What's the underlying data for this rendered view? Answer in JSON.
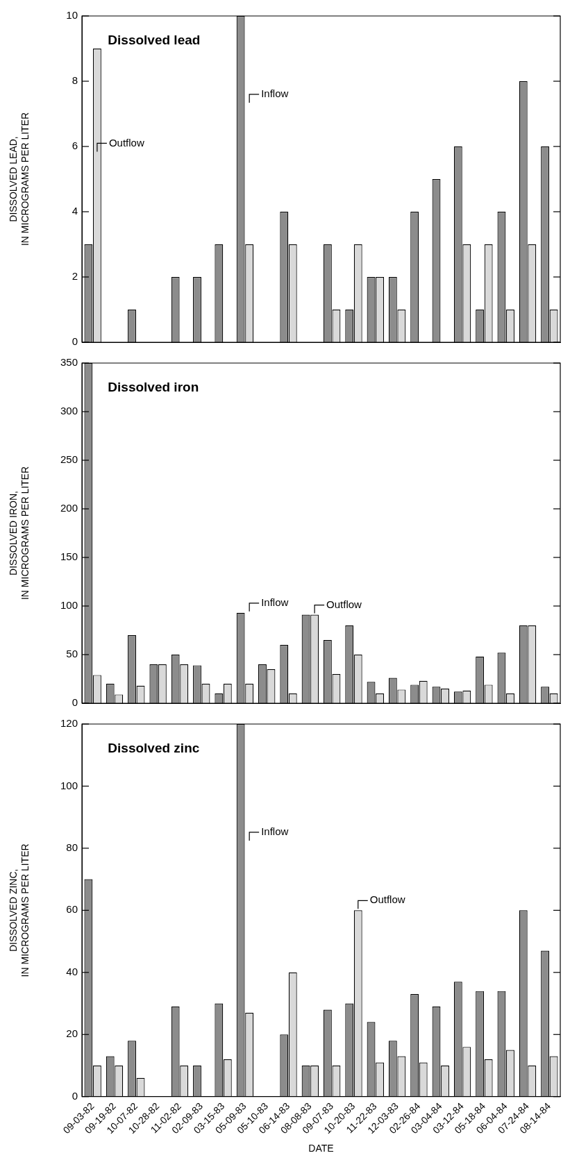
{
  "chart_data": [
    {
      "type": "bar",
      "title": "Dissolved lead",
      "ylabel": "DISSOLVED LEAD,\nIN MICROGRAMS PER LITER",
      "categories": [
        "09-03-82",
        "09-19-82",
        "10-07-82",
        "10-28-82",
        "11-02-82",
        "02-09-83",
        "03-15-83",
        "05-09-83",
        "05-10-83",
        "06-14-83",
        "08-08-83",
        "09-07-83",
        "10-20-83",
        "11-22-83",
        "12-03-83",
        "02-26-84",
        "03-04-84",
        "03-12-84",
        "05-18-84",
        "06-04-84",
        "07-24-84",
        "08-14-84"
      ],
      "series": [
        {
          "color": "#8c8c8c",
          "values": [
            3,
            null,
            1,
            null,
            2,
            2,
            3,
            10,
            null,
            4,
            null,
            3,
            1,
            2,
            2,
            4,
            5,
            6,
            1,
            4,
            8,
            6
          ]
        },
        {
          "color": "#d9d9d9",
          "values": [
            9,
            null,
            null,
            null,
            null,
            null,
            null,
            3,
            null,
            3,
            null,
            1,
            3,
            2,
            1,
            null,
            null,
            3,
            3,
            1,
            3,
            1
          ]
        }
      ],
      "ylim": [
        0,
        10
      ],
      "yticks": [
        0,
        2,
        4,
        6,
        8,
        10
      ],
      "grid": false,
      "legend": false,
      "tick_labels": "y",
      "annotations": [
        {
          "text": "Outflow",
          "x": "09-03-82",
          "y": 5.8
        },
        {
          "text": "Inflow",
          "x": "05-09-83",
          "y": 7.3
        }
      ]
    },
    {
      "type": "bar",
      "title": "Dissolved iron",
      "ylabel": "DISSOLVED IRON,\nIN MICROGRAMS PER LITER",
      "categories": [
        "09-03-82",
        "09-19-82",
        "10-07-82",
        "10-28-82",
        "11-02-82",
        "02-09-83",
        "03-15-83",
        "05-09-83",
        "05-10-83",
        "06-14-83",
        "08-08-83",
        "09-07-83",
        "10-20-83",
        "11-22-83",
        "12-03-83",
        "02-26-84",
        "03-04-84",
        "03-12-84",
        "05-18-84",
        "06-04-84",
        "07-24-84",
        "08-14-84"
      ],
      "series": [
        {
          "color": "#8c8c8c",
          "values": [
            350,
            20,
            70,
            40,
            50,
            39,
            10,
            93,
            40,
            60,
            91,
            65,
            80,
            22,
            26,
            19,
            17,
            12,
            48,
            52,
            80,
            17
          ]
        },
        {
          "color": "#d9d9d9",
          "values": [
            29,
            9,
            18,
            40,
            40,
            20,
            20,
            20,
            35,
            10,
            91,
            30,
            50,
            10,
            14,
            23,
            15,
            13,
            19,
            10,
            80,
            10
          ]
        }
      ],
      "ylim": [
        0,
        350
      ],
      "yticks": [
        0,
        50,
        100,
        150,
        200,
        250,
        300,
        350
      ],
      "grid": false,
      "legend": false,
      "tick_labels": "y",
      "annotations": [
        {
          "text": "Inflow",
          "x": "05-09-83",
          "y": 93
        },
        {
          "text": "Outflow",
          "x": "08-08-83",
          "y": 91
        }
      ]
    },
    {
      "type": "bar",
      "title": "Dissolved zinc",
      "ylabel": "DISSOLVED ZINC,\nIN MICROGRAMS PER LITER",
      "xlabel": "DATE",
      "categories": [
        "09-03-82",
        "09-19-82",
        "10-07-82",
        "10-28-82",
        "11-02-82",
        "02-09-83",
        "03-15-83",
        "05-09-83",
        "05-10-83",
        "06-14-83",
        "08-08-83",
        "09-07-83",
        "10-20-83",
        "11-22-83",
        "12-03-83",
        "02-26-84",
        "03-04-84",
        "03-12-84",
        "05-18-84",
        "06-04-84",
        "07-24-84",
        "08-14-84"
      ],
      "series": [
        {
          "color": "#8c8c8c",
          "values": [
            70,
            13,
            18,
            null,
            29,
            10,
            30,
            120,
            null,
            20,
            10,
            28,
            30,
            24,
            18,
            33,
            29,
            37,
            34,
            34,
            60,
            47
          ]
        },
        {
          "color": "#d9d9d9",
          "values": [
            10,
            10,
            6,
            null,
            10,
            null,
            12,
            27,
            null,
            40,
            10,
            10,
            60,
            11,
            13,
            11,
            10,
            16,
            12,
            15,
            10,
            13
          ]
        }
      ],
      "ylim": [
        0,
        120
      ],
      "yticks": [
        0,
        20,
        40,
        60,
        80,
        100,
        120
      ],
      "grid": false,
      "legend": false,
      "annotations": [
        {
          "text": "Inflow",
          "x": "05-09-83",
          "y": 82
        },
        {
          "text": "Outflow",
          "x": "10-20-83",
          "y": 60
        }
      ]
    }
  ]
}
